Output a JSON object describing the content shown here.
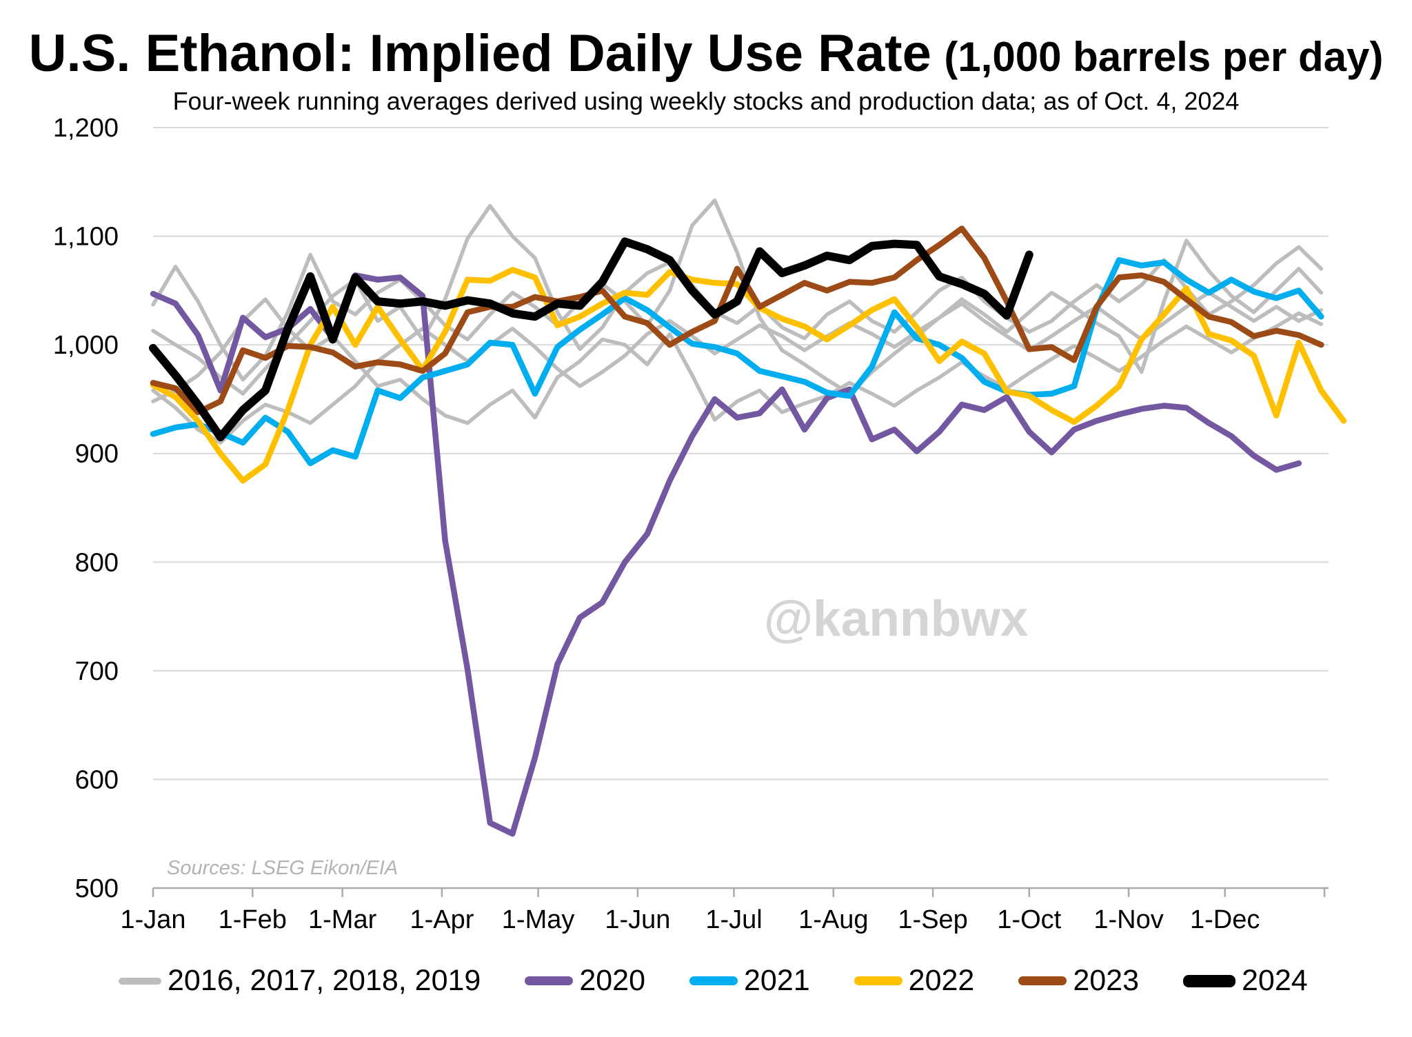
{
  "title": {
    "main": "U.S. Ethanol: Implied Daily Use Rate",
    "unit": "(1,000 barrels per day)"
  },
  "subtitle": "Four-week running averages derived using weekly stocks and production data; as of Oct. 4, 2024",
  "watermark": "@kannbwx",
  "source_note": "Sources: LSEG Eikon/EIA",
  "colors": {
    "gray": "#bdbdbd",
    "purple": "#7357a0",
    "blue": "#00aeef",
    "yellow": "#ffc000",
    "brown": "#9c4a16",
    "black": "#000000",
    "gridline": "#d9d9d9",
    "axis": "#aaaaaa",
    "watermark_gray": "#d5d5d5",
    "source_gray": "#b3b3b3"
  },
  "legend": {
    "items": [
      {
        "label": "2016, 2017, 2018, 2019",
        "color_key": "gray",
        "swatch_w": 62,
        "swatch_h": 10
      },
      {
        "label": "2020",
        "color_key": "purple",
        "swatch_w": 70,
        "swatch_h": 13
      },
      {
        "label": "2021",
        "color_key": "blue",
        "swatch_w": 70,
        "swatch_h": 13
      },
      {
        "label": "2022",
        "color_key": "yellow",
        "swatch_w": 70,
        "swatch_h": 13
      },
      {
        "label": "2023",
        "color_key": "brown",
        "swatch_w": 70,
        "swatch_h": 13
      },
      {
        "label": "2024",
        "color_key": "black",
        "swatch_w": 76,
        "swatch_h": 18
      }
    ]
  },
  "chart_data": {
    "type": "line",
    "title": "U.S. Ethanol: Implied Daily Use Rate (1,000 barrels per day)",
    "xlabel": "",
    "ylabel": "",
    "ylim": [
      500,
      1200
    ],
    "grid": "horizontal",
    "legend_position": "bottom",
    "x_axis": {
      "tick_labels": [
        "1-Jan",
        "1-Feb",
        "1-Mar",
        "1-Apr",
        "1-May",
        "1-Jun",
        "1-Jul",
        "1-Aug",
        "1-Sep",
        "1-Oct",
        "1-Nov",
        "1-Dec"
      ],
      "tick_day_of_year": [
        0,
        31,
        59,
        90,
        120,
        151,
        181,
        212,
        243,
        273,
        304,
        334,
        365
      ]
    },
    "y_axis": {
      "min": 500,
      "max": 1200,
      "step": 100,
      "tick_labels": [
        "500",
        "600",
        "700",
        "800",
        "900",
        "1,000",
        "1,100",
        "1,200"
      ]
    },
    "x_unit": "weekly observations, week 0 = first week of January",
    "series": [
      {
        "name": "2016",
        "group": "2016, 2017, 2018, 2019",
        "color_key": "gray",
        "stroke_width": 5.5,
        "values": [
          948,
          958,
          972,
          993,
          1022,
          1042,
          1015,
          995,
          1008,
          985,
          962,
          968,
          950,
          935,
          928,
          945,
          958,
          933,
          970,
          985,
          1005,
          1000,
          982,
          1010,
          972,
          931,
          948,
          958,
          938,
          946,
          953,
          965,
          955,
          944,
          958,
          970,
          984,
          971,
          960,
          974,
          987,
          999,
          988,
          976,
          989,
          1004,
          1017,
          1005,
          993,
          1006,
          1017,
          1029,
          1019
        ]
      },
      {
        "name": "2017",
        "group": "2016, 2017, 2018, 2019",
        "color_key": "gray",
        "stroke_width": 5.5,
        "values": [
          958,
          942,
          922,
          910,
          930,
          945,
          938,
          928,
          945,
          962,
          985,
          1000,
          1015,
          1000,
          985,
          1000,
          1015,
          998,
          978,
          962,
          975,
          990,
          1010,
          1022,
          1008,
          992,
          1005,
          1018,
          1008,
          995,
          1008,
          1020,
          1010,
          998,
          1012,
          1025,
          1038,
          1022,
          1008,
          995,
          1008,
          1022,
          1035,
          1020,
          1005,
          1020,
          1035,
          1048,
          1035,
          1022,
          1035,
          1022,
          1032
        ]
      },
      {
        "name": "2018",
        "group": "2016, 2017, 2018, 2019",
        "color_key": "gray",
        "stroke_width": 5.5,
        "values": [
          1037,
          1072,
          1040,
          1000,
          968,
          990,
          1030,
          1083,
          1040,
          1028,
          1048,
          1060,
          1040,
          1018,
          1005,
          1028,
          1048,
          1035,
          1018,
          1040,
          1056,
          1040,
          1018,
          1050,
          1110,
          1133,
          1085,
          1025,
          995,
          982,
          968,
          955,
          975,
          992,
          1008,
          1025,
          1042,
          1028,
          1012,
          1030,
          1048,
          1035,
          1020,
          1008,
          975,
          1040,
          1096,
          1068,
          1045,
          1030,
          1050,
          1070,
          1048
        ]
      },
      {
        "name": "2019",
        "group": "2016, 2017, 2018, 2019",
        "color_key": "gray",
        "stroke_width": 5.5,
        "values": [
          1013,
          1000,
          988,
          970,
          955,
          978,
          1000,
          1022,
          1045,
          1060,
          1022,
          1035,
          1005,
          1042,
          1098,
          1128,
          1100,
          1080,
          1030,
          996,
          1016,
          1048,
          1066,
          1076,
          1055,
          1030,
          1020,
          1036,
          1016,
          1006,
          1028,
          1040,
          1022,
          1012,
          1030,
          1050,
          1062,
          1040,
          1025,
          1012,
          1022,
          1040,
          1055,
          1040,
          1055,
          1078,
          1052,
          1028,
          1040,
          1055,
          1075,
          1090,
          1070
        ]
      },
      {
        "name": "2020",
        "color_key": "purple",
        "stroke_width": 8.5,
        "values": [
          1047,
          1038,
          1009,
          958,
          1025,
          1007,
          1015,
          1033,
          1006,
          1064,
          1060,
          1062,
          1045,
          820,
          701,
          560,
          550,
          620,
          706,
          749,
          763,
          800,
          826,
          875,
          916,
          950,
          933,
          937,
          959,
          922,
          951,
          959,
          913,
          922,
          902,
          920,
          945,
          940,
          952,
          920,
          901,
          922,
          930,
          936,
          941,
          944,
          942,
          928,
          916,
          898,
          885,
          891
        ]
      },
      {
        "name": "2021",
        "color_key": "blue",
        "stroke_width": 8.5,
        "values": [
          918,
          924,
          927,
          919,
          910,
          933,
          920,
          891,
          903,
          897,
          958,
          951,
          970,
          976,
          982,
          1002,
          1000,
          955,
          998,
          1014,
          1028,
          1043,
          1032,
          1016,
          1001,
          998,
          992,
          976,
          971,
          966,
          956,
          953,
          980,
          1030,
          1006,
          1000,
          988,
          966,
          957,
          954,
          955,
          962,
          1033,
          1078,
          1073,
          1076,
          1060,
          1048,
          1060,
          1049,
          1043,
          1050,
          1026
        ]
      },
      {
        "name": "2022",
        "color_key": "yellow",
        "stroke_width": 8.5,
        "values": [
          963,
          952,
          930,
          900,
          875,
          890,
          940,
          1000,
          1035,
          1000,
          1035,
          1005,
          977,
          1012,
          1060,
          1059,
          1069,
          1062,
          1018,
          1026,
          1038,
          1048,
          1046,
          1067,
          1060,
          1057,
          1056,
          1034,
          1024,
          1017,
          1005,
          1018,
          1032,
          1042,
          1016,
          985,
          1003,
          992,
          957,
          953,
          940,
          929,
          944,
          962,
          1005,
          1028,
          1052,
          1010,
          1004,
          990,
          935,
          1002,
          958,
          930
        ]
      },
      {
        "name": "2023",
        "color_key": "brown",
        "stroke_width": 8.5,
        "values": [
          965,
          960,
          938,
          948,
          995,
          988,
          999,
          998,
          993,
          980,
          984,
          982,
          976,
          992,
          1030,
          1035,
          1035,
          1044,
          1040,
          1044,
          1050,
          1026,
          1020,
          1000,
          1012,
          1022,
          1070,
          1035,
          1046,
          1057,
          1050,
          1058,
          1057,
          1062,
          1078,
          1092,
          1107,
          1080,
          1040,
          996,
          998,
          986,
          1035,
          1062,
          1064,
          1058,
          1042,
          1026,
          1021,
          1008,
          1013,
          1009,
          1000
        ]
      },
      {
        "name": "2024",
        "color_key": "black",
        "stroke_width": 12,
        "values": [
          997,
          972,
          945,
          915,
          940,
          958,
          1015,
          1063,
          1005,
          1062,
          1040,
          1038,
          1040,
          1036,
          1041,
          1038,
          1029,
          1026,
          1038,
          1036,
          1058,
          1095,
          1088,
          1078,
          1050,
          1028,
          1040,
          1086,
          1066,
          1073,
          1082,
          1078,
          1091,
          1093,
          1092,
          1063,
          1056,
          1047,
          1027,
          1083
        ]
      }
    ]
  }
}
